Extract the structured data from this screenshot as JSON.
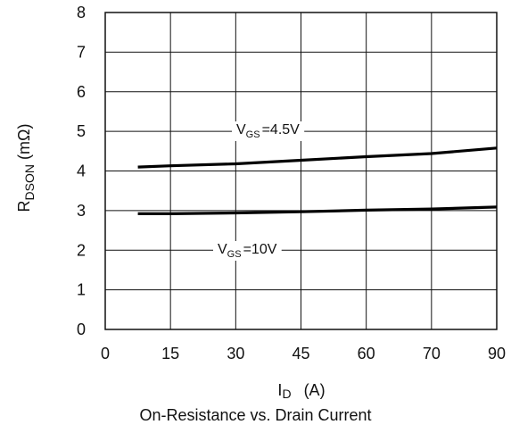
{
  "chart_data": {
    "type": "line",
    "title": "On-Resistance vs. Drain Current",
    "xlabel": {
      "main": "I",
      "sub": "D",
      "unit": "(A)"
    },
    "ylabel": {
      "main": "R",
      "sub": "DSON",
      "unit": "(mΩ)"
    },
    "x_ticks": [
      "0",
      "15",
      "30",
      "45",
      "60",
      "70",
      "90"
    ],
    "y_ticks": [
      "0",
      "1",
      "2",
      "3",
      "4",
      "5",
      "6",
      "7",
      "8"
    ],
    "ylim": [
      0,
      8
    ],
    "grid": true,
    "series": [
      {
        "name": "VGS=4.5V",
        "label": {
          "main": "V",
          "sub": "GS",
          "value": "=4.5V"
        },
        "x": [
          7.5,
          15,
          30,
          45,
          60,
          70,
          90
        ],
        "y": [
          4.1,
          4.13,
          4.18,
          4.27,
          4.36,
          4.44,
          4.58
        ]
      },
      {
        "name": "VGS=10V",
        "label": {
          "main": "V",
          "sub": "GS",
          "value": "=10V"
        },
        "x": [
          7.5,
          15,
          30,
          45,
          60,
          70,
          90
        ],
        "y": [
          2.92,
          2.92,
          2.94,
          2.97,
          3.01,
          3.04,
          3.09
        ]
      }
    ]
  }
}
